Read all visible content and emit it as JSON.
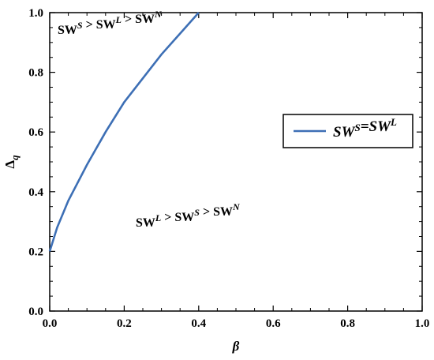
{
  "chart_data": {
    "type": "line",
    "xlabel": "β",
    "ylabel": "Δq",
    "xlim": [
      0,
      1
    ],
    "ylim": [
      0,
      1
    ],
    "x_ticks": [
      "0.0",
      "0.2",
      "0.4",
      "0.6",
      "0.8",
      "1.0"
    ],
    "y_ticks": [
      "0.0",
      "0.2",
      "0.4",
      "0.6",
      "0.8",
      "1.0"
    ],
    "grid": false,
    "legend_position": "right-middle",
    "series": [
      {
        "name": "SW^S=SW^L",
        "color": "#3d6fb5",
        "x": [
          0.0,
          0.02,
          0.05,
          0.1,
          0.15,
          0.2,
          0.25,
          0.3,
          0.35,
          0.4
        ],
        "y": [
          0.2,
          0.28,
          0.37,
          0.49,
          0.6,
          0.7,
          0.78,
          0.86,
          0.93,
          1.0
        ]
      }
    ],
    "annotations": [
      "SW^S > SW^L > SW^N",
      "SW^L > SW^S > SW^N"
    ]
  }
}
